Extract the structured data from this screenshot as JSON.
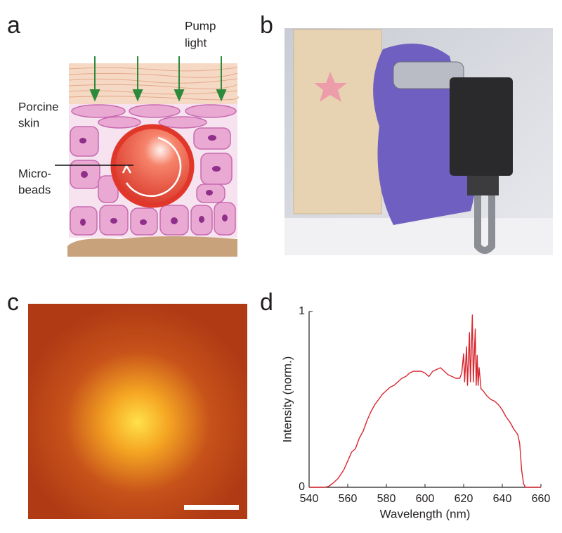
{
  "panels": [
    "a",
    "b",
    "c",
    "d"
  ],
  "panel_a": {
    "pump_light": [
      "Pump",
      "light"
    ],
    "porcine_skin": [
      "Porcine",
      "skin"
    ],
    "micro_beads": [
      "Micro-",
      "beads"
    ]
  },
  "chart_data": {
    "type": "line",
    "xlabel": "Wavelength (nm)",
    "ylabel": "Intensity (norm.)",
    "color": "#d7262e",
    "x": [
      540,
      548,
      550,
      552,
      555,
      558,
      560,
      562,
      564,
      566,
      568,
      570,
      572,
      574,
      576,
      578,
      580,
      582,
      584,
      586,
      588,
      590,
      592,
      594,
      596,
      598,
      600,
      602,
      604,
      606,
      608,
      610,
      612,
      614,
      616,
      618,
      619,
      620,
      620.5,
      621.5,
      622,
      623,
      623.5,
      624.5,
      625,
      626,
      626.5,
      627,
      627.5,
      628,
      629,
      630,
      632,
      634,
      636,
      638,
      640,
      642,
      644,
      646,
      648,
      649,
      650,
      651,
      652,
      660
    ],
    "values": [
      0,
      0,
      0.005,
      0.02,
      0.05,
      0.1,
      0.15,
      0.2,
      0.22,
      0.28,
      0.32,
      0.38,
      0.43,
      0.47,
      0.5,
      0.53,
      0.55,
      0.57,
      0.58,
      0.6,
      0.62,
      0.63,
      0.65,
      0.66,
      0.66,
      0.66,
      0.65,
      0.63,
      0.66,
      0.67,
      0.68,
      0.66,
      0.64,
      0.63,
      0.62,
      0.62,
      0.65,
      0.76,
      0.6,
      0.8,
      0.58,
      0.88,
      0.6,
      0.98,
      0.6,
      0.9,
      0.58,
      0.75,
      0.58,
      0.68,
      0.56,
      0.55,
      0.52,
      0.5,
      0.49,
      0.47,
      0.44,
      0.4,
      0.37,
      0.33,
      0.3,
      0.25,
      0.1,
      0.02,
      0,
      0
    ],
    "xlim": [
      540,
      660
    ],
    "xticks": [
      540,
      560,
      580,
      600,
      620,
      640,
      660
    ],
    "ylim": [
      0,
      1
    ],
    "yticks": [
      0,
      1
    ]
  }
}
